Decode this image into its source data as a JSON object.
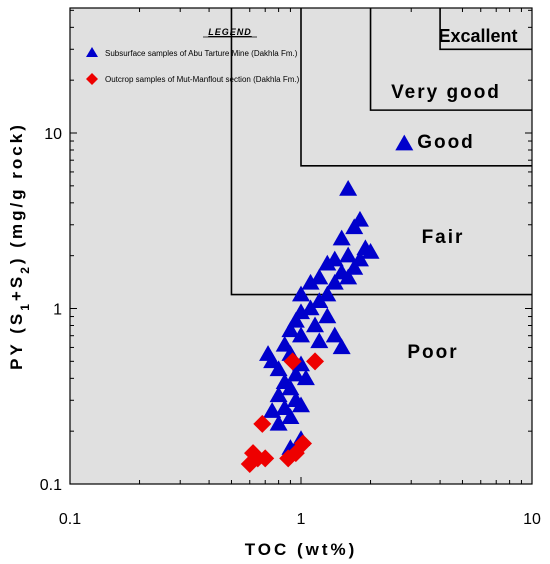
{
  "chart_data": {
    "type": "scatter",
    "x_scale": "log",
    "y_scale": "log",
    "xlim": [
      0.1,
      10
    ],
    "ylim": [
      0.1,
      100
    ],
    "xlabel": "TOC (wt%)",
    "ylabel": "PY (S1+S2) (mg/g rock)",
    "x_ticks": [
      "0.1",
      "1",
      "10"
    ],
    "y_ticks": [
      "0.1",
      "1",
      "10"
    ],
    "legend": {
      "title": "LEGEND",
      "placement": "top-left"
    },
    "zones": [
      {
        "label": "Poor"
      },
      {
        "label": "Fair",
        "toc_min": 0.5,
        "py_min": 1.2
      },
      {
        "label": "Good",
        "toc_min": 1.0,
        "py_min": 6.5
      },
      {
        "label": "Very good",
        "toc_min": 2.0,
        "py_min": 13.5
      },
      {
        "label": "Excallent",
        "toc_min": 4.0,
        "py_min": 30
      }
    ],
    "zone_boundary_top": 150,
    "series": [
      {
        "name": "Subsurface samples of Abu Tarture Mine (Dakhla Fm.)",
        "marker": "triangle",
        "color": "#0000cc",
        "points": [
          [
            2.8,
            8.7
          ],
          [
            1.6,
            4.8
          ],
          [
            1.8,
            3.2
          ],
          [
            1.7,
            2.9
          ],
          [
            1.5,
            2.5
          ],
          [
            1.9,
            2.2
          ],
          [
            1.6,
            2.0
          ],
          [
            1.4,
            1.9
          ],
          [
            2.0,
            2.1
          ],
          [
            1.7,
            1.7
          ],
          [
            1.5,
            1.6
          ],
          [
            1.3,
            1.8
          ],
          [
            1.8,
            1.9
          ],
          [
            1.4,
            1.4
          ],
          [
            1.6,
            1.5
          ],
          [
            1.2,
            1.5
          ],
          [
            1.1,
            1.4
          ],
          [
            1.3,
            1.2
          ],
          [
            1.0,
            1.2
          ],
          [
            1.2,
            1.1
          ],
          [
            1.1,
            1.0
          ],
          [
            1.0,
            0.95
          ],
          [
            0.95,
            0.85
          ],
          [
            1.15,
            0.8
          ],
          [
            1.3,
            0.9
          ],
          [
            0.9,
            0.75
          ],
          [
            1.0,
            0.7
          ],
          [
            1.4,
            0.7
          ],
          [
            0.85,
            0.62
          ],
          [
            1.2,
            0.65
          ],
          [
            0.9,
            0.55
          ],
          [
            1.5,
            0.6
          ],
          [
            0.72,
            0.55
          ],
          [
            0.75,
            0.5
          ],
          [
            1.0,
            0.48
          ],
          [
            0.8,
            0.45
          ],
          [
            0.95,
            0.42
          ],
          [
            0.85,
            0.38
          ],
          [
            1.05,
            0.4
          ],
          [
            0.9,
            0.35
          ],
          [
            0.8,
            0.32
          ],
          [
            0.95,
            0.3
          ],
          [
            1.0,
            0.28
          ],
          [
            0.85,
            0.27
          ],
          [
            0.75,
            0.26
          ],
          [
            0.9,
            0.24
          ],
          [
            0.8,
            0.22
          ],
          [
            0.9,
            0.16
          ],
          [
            1.0,
            0.18
          ]
        ]
      },
      {
        "name": "Outcrop samples of Mut-Manflout section (Dakhla Fm.)",
        "marker": "diamond",
        "color": "#ee0000",
        "points": [
          [
            0.92,
            0.5
          ],
          [
            1.15,
            0.5
          ],
          [
            0.68,
            0.22
          ],
          [
            0.62,
            0.15
          ],
          [
            0.6,
            0.13
          ],
          [
            0.7,
            0.14
          ],
          [
            0.88,
            0.14
          ],
          [
            0.95,
            0.15
          ],
          [
            1.02,
            0.17
          ],
          [
            0.65,
            0.14
          ]
        ]
      }
    ]
  }
}
